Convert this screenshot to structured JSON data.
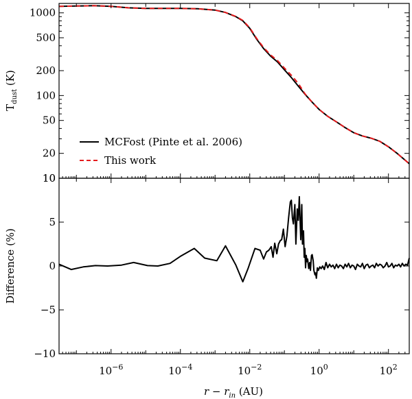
{
  "chart_data": [
    {
      "type": "line",
      "panel": "top",
      "xscale": "log",
      "yscale": "log",
      "xlim_log10": [
        -7.5,
        2.6
      ],
      "ylim": [
        10,
        1300
      ],
      "ylabel": "T",
      "ylabel_sub": "dust",
      "ylabel_unit": " (K)",
      "ytick_values": [
        10,
        20,
        50,
        100,
        200,
        500,
        1000
      ],
      "ytick_labels": [
        "10",
        "20",
        "50",
        "100",
        "200",
        "500",
        "1000"
      ],
      "legend_position": "lower-left",
      "series": [
        {
          "name": "MCFost (Pinte et al. 2006)",
          "style": "solid",
          "color": "#000000",
          "x_log10": [
            -7.5,
            -7.0,
            -6.5,
            -6.0,
            -5.5,
            -5.0,
            -4.5,
            -4.0,
            -3.5,
            -3.0,
            -2.7,
            -2.4,
            -2.2,
            -2.0,
            -1.8,
            -1.6,
            -1.4,
            -1.2,
            -1.0,
            -0.8,
            -0.6,
            -0.4,
            -0.2,
            0.0,
            0.25,
            0.5,
            0.75,
            1.0,
            1.25,
            1.5,
            1.75,
            2.0,
            2.25,
            2.6
          ],
          "y": [
            1200,
            1210,
            1220,
            1200,
            1150,
            1130,
            1130,
            1130,
            1120,
            1080,
            1010,
            900,
            800,
            650,
            480,
            370,
            300,
            255,
            205,
            165,
            130,
            103,
            83,
            68,
            56,
            48,
            41,
            35.5,
            32.5,
            30.5,
            28,
            24,
            20,
            15
          ]
        },
        {
          "name": "This work",
          "style": "dashed",
          "color": "#e41a1c",
          "x_log10": [
            -7.5,
            -7.0,
            -6.5,
            -6.0,
            -5.5,
            -5.0,
            -4.5,
            -4.0,
            -3.5,
            -3.0,
            -2.7,
            -2.4,
            -2.2,
            -2.0,
            -1.8,
            -1.6,
            -1.4,
            -1.2,
            -1.0,
            -0.8,
            -0.6,
            -0.4,
            -0.2,
            0.0,
            0.25,
            0.5,
            0.75,
            1.0,
            1.25,
            1.5,
            1.75,
            2.0,
            2.25,
            2.6
          ],
          "y": [
            1200,
            1210,
            1220,
            1200,
            1150,
            1130,
            1130,
            1130,
            1120,
            1080,
            1010,
            905,
            810,
            660,
            490,
            380,
            310,
            265,
            215,
            176,
            140,
            104,
            83,
            68,
            56,
            48,
            41,
            35.5,
            32.5,
            30.5,
            28,
            24,
            20,
            15
          ]
        }
      ]
    },
    {
      "type": "line",
      "panel": "bottom",
      "xscale": "log",
      "xlim_log10": [
        -7.5,
        2.6
      ],
      "ylim": [
        -10,
        10
      ],
      "ylabel": "Difference (%)",
      "xlabel_italic": "r − r",
      "xlabel_sub": "in",
      "xlabel_unit": " (AU)",
      "ytick_values": [
        -10,
        -5,
        0,
        5,
        10
      ],
      "ytick_labels": [
        "−10",
        "−5",
        "0",
        "5",
        "10"
      ],
      "xtick_exponents": [
        -6,
        -4,
        -2,
        0,
        2
      ],
      "xtick_base": "10",
      "series": [
        {
          "name": "Difference",
          "color": "#000000",
          "x_log10": [
            -7.5,
            -7.15,
            -6.8,
            -6.45,
            -6.1,
            -5.7,
            -5.35,
            -4.95,
            -4.65,
            -4.3,
            -4.0,
            -3.6,
            -3.3,
            -2.95,
            -2.7,
            -2.4,
            -2.2,
            -2.05,
            -1.85,
            -1.7,
            -1.6,
            -1.52,
            -1.45,
            -1.38,
            -1.33,
            -1.28,
            -1.22,
            -1.17,
            -1.12,
            -1.08,
            -1.03,
            -0.98,
            -0.93,
            -0.88,
            -0.83,
            -0.8,
            -0.77,
            -0.74,
            -0.7,
            -0.67,
            -0.63,
            -0.6,
            -0.57,
            -0.53,
            -0.5,
            -0.48,
            -0.45,
            -0.43,
            -0.41,
            -0.39,
            -0.37,
            -0.35,
            -0.33,
            -0.3,
            -0.27,
            -0.25,
            -0.22,
            -0.2,
            -0.17,
            -0.15,
            -0.12,
            -0.1,
            -0.08,
            -0.05,
            -0.02,
            0.02,
            0.06,
            0.1,
            0.15,
            0.2,
            0.25,
            0.3,
            0.35,
            0.4,
            0.45,
            0.5,
            0.55,
            0.6,
            0.65,
            0.7,
            0.75,
            0.8,
            0.85,
            0.9,
            0.95,
            1.0,
            1.05,
            1.1,
            1.15,
            1.2,
            1.25,
            1.3,
            1.35,
            1.4,
            1.45,
            1.5,
            1.55,
            1.6,
            1.65,
            1.7,
            1.75,
            1.8,
            1.85,
            1.9,
            1.95,
            2.0,
            2.05,
            2.1,
            2.15,
            2.2,
            2.25,
            2.3,
            2.35,
            2.4,
            2.45,
            2.5,
            2.55,
            2.6
          ],
          "y": [
            0.2,
            -0.4,
            -0.1,
            0.05,
            0.0,
            0.1,
            0.4,
            0.05,
            0.0,
            0.3,
            1.1,
            2.0,
            0.9,
            0.6,
            2.3,
            0.1,
            -1.8,
            -0.3,
            2.0,
            1.8,
            0.8,
            1.6,
            1.8,
            2.2,
            1.0,
            2.6,
            1.4,
            2.5,
            2.9,
            3.0,
            4.2,
            2.2,
            3.4,
            5.5,
            7.3,
            7.5,
            5.5,
            4.8,
            7.0,
            2.5,
            6.5,
            5.2,
            7.9,
            3.0,
            7.0,
            2.5,
            4.0,
            1.0,
            2.0,
            -0.2,
            1.2,
            0.5,
            0.8,
            -0.3,
            0.4,
            -0.5,
            1.2,
            1.3,
            0.6,
            -0.5,
            -1.0,
            -0.8,
            -1.4,
            -0.2,
            -0.5,
            -0.1,
            -0.3,
            0.0,
            -0.4,
            0.4,
            -0.2,
            0.2,
            -0.1,
            0.1,
            -0.3,
            0.2,
            -0.2,
            0.1,
            0.0,
            -0.3,
            0.2,
            -0.1,
            0.3,
            -0.2,
            0.1,
            0.0,
            -0.4,
            0.2,
            0.0,
            -0.1,
            0.3,
            -0.3,
            0.1,
            0.2,
            -0.2,
            0.0,
            0.1,
            -0.2,
            0.3,
            0.0,
            0.2,
            0.1,
            -0.2,
            0.0,
            0.4,
            -0.1,
            0.0,
            0.3,
            -0.2,
            0.1,
            0.0,
            0.2,
            -0.1,
            0.3,
            0.0,
            0.2,
            0.1,
            0.9
          ]
        }
      ]
    }
  ]
}
